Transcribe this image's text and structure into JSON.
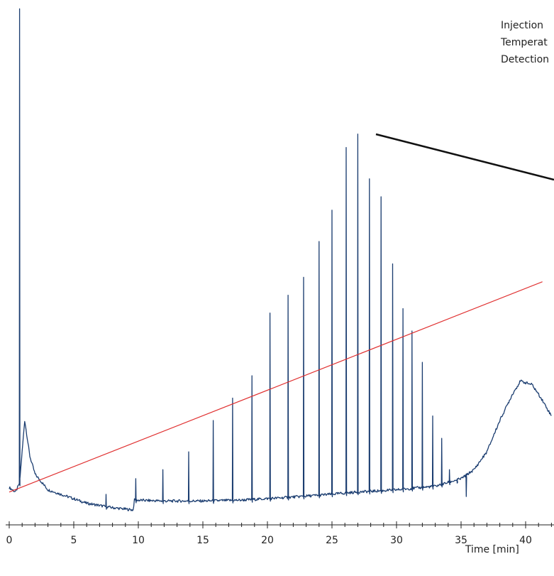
{
  "chart_data": {
    "type": "line",
    "title": "",
    "xlabel": "Time [min]",
    "ylabel": "",
    "xlim": [
      0,
      42
    ],
    "xticks": [
      0,
      5,
      10,
      15,
      20,
      25,
      30,
      35,
      40
    ],
    "minor_tick_step": 1,
    "annotations": [
      "Injection",
      "Temperat",
      "Detection"
    ],
    "colors": {
      "trace": "#1b3d70",
      "gradient": "#e03030",
      "pointer": "#111111"
    },
    "series": [
      {
        "style": "chromatogram",
        "baseline": [
          [
            0.0,
            0.05
          ],
          [
            0.5,
            0.04
          ],
          [
            0.8,
            0.06
          ],
          [
            1.2,
            0.2
          ],
          [
            1.6,
            0.12
          ],
          [
            2.0,
            0.08
          ],
          [
            3.0,
            0.045
          ],
          [
            4.0,
            0.035
          ],
          [
            6.0,
            0.015
          ],
          [
            8.0,
            0.005
          ],
          [
            9.6,
            0.0
          ],
          [
            9.7,
            0.022
          ],
          [
            12.0,
            0.02
          ],
          [
            15.0,
            0.02
          ],
          [
            18.0,
            0.022
          ],
          [
            21.0,
            0.027
          ],
          [
            24.0,
            0.033
          ],
          [
            27.0,
            0.04
          ],
          [
            30.0,
            0.045
          ],
          [
            33.0,
            0.053
          ],
          [
            35.0,
            0.07
          ],
          [
            36.0,
            0.09
          ],
          [
            37.0,
            0.13
          ],
          [
            38.0,
            0.2
          ],
          [
            39.0,
            0.26
          ],
          [
            39.6,
            0.288
          ],
          [
            40.5,
            0.28
          ],
          [
            41.2,
            0.25
          ],
          [
            42.0,
            0.21
          ]
        ],
        "peaks": [
          [
            0.8,
            1.12
          ],
          [
            7.5,
            0.035
          ],
          [
            9.8,
            0.07
          ],
          [
            11.9,
            0.09
          ],
          [
            13.9,
            0.13
          ],
          [
            15.8,
            0.2
          ],
          [
            17.3,
            0.25
          ],
          [
            18.8,
            0.3
          ],
          [
            20.2,
            0.44
          ],
          [
            21.6,
            0.48
          ],
          [
            22.8,
            0.52
          ],
          [
            24.0,
            0.6
          ],
          [
            25.0,
            0.67
          ],
          [
            26.1,
            0.81
          ],
          [
            27.0,
            0.84
          ],
          [
            27.9,
            0.74
          ],
          [
            28.8,
            0.7
          ],
          [
            29.7,
            0.55
          ],
          [
            30.5,
            0.45
          ],
          [
            31.2,
            0.4
          ],
          [
            32.0,
            0.33
          ],
          [
            32.8,
            0.21
          ],
          [
            33.5,
            0.16
          ],
          [
            34.1,
            0.09
          ],
          [
            34.7,
            0.06
          ],
          [
            35.4,
            0.03
          ]
        ]
      },
      {
        "style": "temperature-gradient",
        "points": [
          [
            0.0,
            0.04
          ],
          [
            41.3,
            0.51
          ]
        ]
      }
    ]
  }
}
